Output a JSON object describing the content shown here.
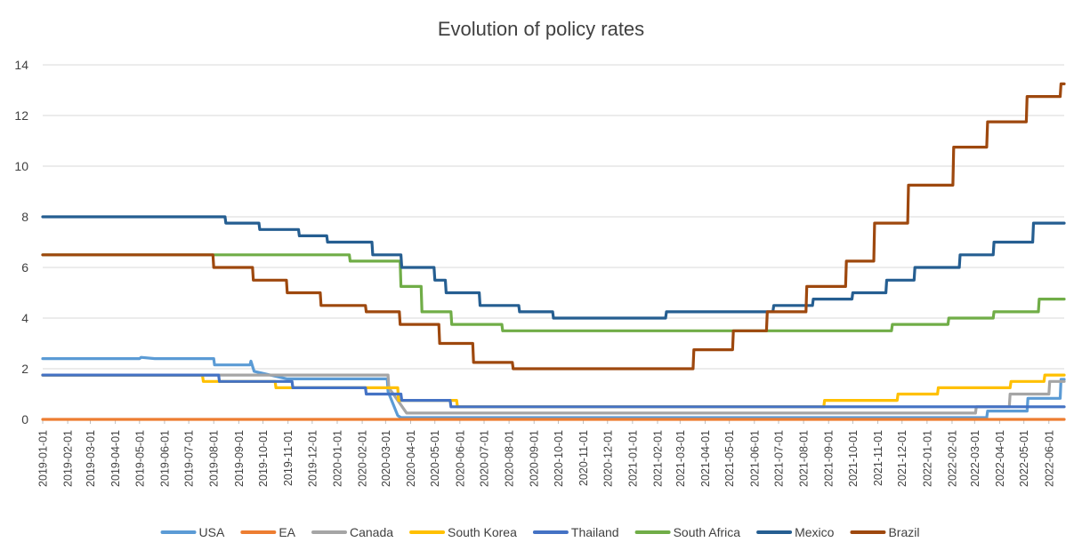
{
  "chart_data": {
    "type": "line",
    "title": "Evolution of policy rates",
    "xlabel": "",
    "ylabel": "",
    "ylim": [
      0,
      14
    ],
    "yticks": [
      0,
      2,
      4,
      6,
      8,
      10,
      12,
      14
    ],
    "grid": true,
    "legend_position": "bottom",
    "x_start": "2019-01-01",
    "x_end": "2022-06-20",
    "x_ticks": [
      "2019-01-01",
      "2019-02-01",
      "2019-03-01",
      "2019-04-01",
      "2019-05-01",
      "2019-06-01",
      "2019-07-01",
      "2019-08-01",
      "2019-09-01",
      "2019-10-01",
      "2019-11-01",
      "2019-12-01",
      "2020-01-01",
      "2020-02-01",
      "2020-03-01",
      "2020-04-01",
      "2020-05-01",
      "2020-06-01",
      "2020-07-01",
      "2020-08-01",
      "2020-09-01",
      "2020-10-01",
      "2020-11-01",
      "2020-12-01",
      "2021-01-01",
      "2021-02-01",
      "2021-03-01",
      "2021-04-01",
      "2021-05-01",
      "2021-06-01",
      "2021-07-01",
      "2021-08-01",
      "2021-09-01",
      "2021-10-01",
      "2021-11-01",
      "2021-12-01",
      "2022-01-01",
      "2022-02-01",
      "2022-03-01",
      "2022-04-01",
      "2022-05-01",
      "2022-06-01"
    ],
    "series": [
      {
        "name": "USA",
        "color": "#5b9bd5",
        "points": [
          [
            "2019-01-01",
            2.4
          ],
          [
            "2019-05-01",
            2.4
          ],
          [
            "2019-05-03",
            2.45
          ],
          [
            "2019-05-20",
            2.4
          ],
          [
            "2019-08-01",
            2.4
          ],
          [
            "2019-08-02",
            2.15
          ],
          [
            "2019-09-15",
            2.15
          ],
          [
            "2019-09-16",
            2.3
          ],
          [
            "2019-09-20",
            1.9
          ],
          [
            "2019-10-31",
            1.6
          ],
          [
            "2020-03-03",
            1.6
          ],
          [
            "2020-03-04",
            1.1
          ],
          [
            "2020-03-16",
            0.15
          ],
          [
            "2020-03-20",
            0.07
          ],
          [
            "2022-03-16",
            0.07
          ],
          [
            "2022-03-17",
            0.33
          ],
          [
            "2022-05-05",
            0.33
          ],
          [
            "2022-05-06",
            0.83
          ],
          [
            "2022-06-15",
            0.83
          ],
          [
            "2022-06-16",
            1.58
          ]
        ]
      },
      {
        "name": "EA",
        "color": "#ed7d31",
        "points": [
          [
            "2019-01-01",
            0.0
          ],
          [
            "2022-06-20",
            0.0
          ]
        ]
      },
      {
        "name": "Canada",
        "color": "#a5a5a5",
        "points": [
          [
            "2019-01-01",
            1.75
          ],
          [
            "2020-03-04",
            1.75
          ],
          [
            "2020-03-05",
            1.25
          ],
          [
            "2020-03-16",
            0.75
          ],
          [
            "2020-03-27",
            0.25
          ],
          [
            "2022-03-02",
            0.25
          ],
          [
            "2022-03-03",
            0.5
          ],
          [
            "2022-04-13",
            0.5
          ],
          [
            "2022-04-14",
            1.0
          ],
          [
            "2022-06-01",
            1.0
          ],
          [
            "2022-06-02",
            1.5
          ]
        ]
      },
      {
        "name": "South Korea",
        "color": "#ffc000",
        "points": [
          [
            "2019-01-01",
            1.75
          ],
          [
            "2019-07-18",
            1.75
          ],
          [
            "2019-07-19",
            1.5
          ],
          [
            "2019-10-16",
            1.5
          ],
          [
            "2019-10-17",
            1.25
          ],
          [
            "2020-03-16",
            1.25
          ],
          [
            "2020-03-17",
            0.75
          ],
          [
            "2020-05-28",
            0.75
          ],
          [
            "2020-05-29",
            0.5
          ],
          [
            "2021-08-26",
            0.5
          ],
          [
            "2021-08-27",
            0.75
          ],
          [
            "2021-11-25",
            0.75
          ],
          [
            "2021-11-26",
            1.0
          ],
          [
            "2022-01-14",
            1.0
          ],
          [
            "2022-01-15",
            1.25
          ],
          [
            "2022-04-14",
            1.25
          ],
          [
            "2022-04-15",
            1.5
          ],
          [
            "2022-05-26",
            1.5
          ],
          [
            "2022-05-27",
            1.75
          ]
        ]
      },
      {
        "name": "Thailand",
        "color": "#4472c4",
        "points": [
          [
            "2019-01-01",
            1.75
          ],
          [
            "2019-08-07",
            1.75
          ],
          [
            "2019-08-08",
            1.5
          ],
          [
            "2019-11-06",
            1.5
          ],
          [
            "2019-11-07",
            1.25
          ],
          [
            "2020-02-05",
            1.25
          ],
          [
            "2020-02-06",
            1.0
          ],
          [
            "2020-03-20",
            1.0
          ],
          [
            "2020-03-21",
            0.75
          ],
          [
            "2020-05-20",
            0.75
          ],
          [
            "2020-05-21",
            0.5
          ],
          [
            "2022-06-20",
            0.5
          ]
        ]
      },
      {
        "name": "South Africa",
        "color": "#70ad47",
        "points": [
          [
            "2019-01-01",
            6.5
          ],
          [
            "2020-01-16",
            6.5
          ],
          [
            "2020-01-17",
            6.25
          ],
          [
            "2020-03-19",
            6.25
          ],
          [
            "2020-03-20",
            5.25
          ],
          [
            "2020-04-14",
            5.25
          ],
          [
            "2020-04-15",
            4.25
          ],
          [
            "2020-05-21",
            4.25
          ],
          [
            "2020-05-22",
            3.75
          ],
          [
            "2020-07-23",
            3.75
          ],
          [
            "2020-07-24",
            3.5
          ],
          [
            "2021-11-18",
            3.5
          ],
          [
            "2021-11-19",
            3.75
          ],
          [
            "2022-01-27",
            3.75
          ],
          [
            "2022-01-28",
            4.0
          ],
          [
            "2022-03-24",
            4.0
          ],
          [
            "2022-03-25",
            4.25
          ],
          [
            "2022-05-19",
            4.25
          ],
          [
            "2022-05-20",
            4.75
          ]
        ]
      },
      {
        "name": "Mexico",
        "color": "#255e91",
        "points": [
          [
            "2019-01-01",
            8.0
          ],
          [
            "2019-08-15",
            8.0
          ],
          [
            "2019-08-16",
            7.75
          ],
          [
            "2019-09-26",
            7.75
          ],
          [
            "2019-09-27",
            7.5
          ],
          [
            "2019-11-14",
            7.5
          ],
          [
            "2019-11-15",
            7.25
          ],
          [
            "2019-12-19",
            7.25
          ],
          [
            "2019-12-20",
            7.0
          ],
          [
            "2020-02-13",
            7.0
          ],
          [
            "2020-02-14",
            6.5
          ],
          [
            "2020-03-20",
            6.5
          ],
          [
            "2020-03-21",
            6.0
          ],
          [
            "2020-04-30",
            6.0
          ],
          [
            "2020-05-01",
            5.5
          ],
          [
            "2020-05-14",
            5.5
          ],
          [
            "2020-05-15",
            5.0
          ],
          [
            "2020-06-25",
            5.0
          ],
          [
            "2020-06-26",
            4.5
          ],
          [
            "2020-08-13",
            4.5
          ],
          [
            "2020-08-14",
            4.25
          ],
          [
            "2020-09-24",
            4.25
          ],
          [
            "2020-09-25",
            4.0
          ],
          [
            "2021-02-11",
            4.0
          ],
          [
            "2021-02-12",
            4.25
          ],
          [
            "2021-06-24",
            4.25
          ],
          [
            "2021-06-25",
            4.5
          ],
          [
            "2021-08-12",
            4.5
          ],
          [
            "2021-08-13",
            4.75
          ],
          [
            "2021-09-30",
            4.75
          ],
          [
            "2021-10-01",
            5.0
          ],
          [
            "2021-11-11",
            5.0
          ],
          [
            "2021-11-12",
            5.5
          ],
          [
            "2021-12-16",
            5.5
          ],
          [
            "2021-12-17",
            6.0
          ],
          [
            "2022-02-10",
            6.0
          ],
          [
            "2022-02-11",
            6.5
          ],
          [
            "2022-03-24",
            6.5
          ],
          [
            "2022-03-25",
            7.0
          ],
          [
            "2022-05-12",
            7.0
          ],
          [
            "2022-05-13",
            7.75
          ]
        ]
      },
      {
        "name": "Brazil",
        "color": "#9e480e",
        "points": [
          [
            "2019-01-01",
            6.5
          ],
          [
            "2019-07-31",
            6.5
          ],
          [
            "2019-08-01",
            6.0
          ],
          [
            "2019-09-18",
            6.0
          ],
          [
            "2019-09-19",
            5.5
          ],
          [
            "2019-10-30",
            5.5
          ],
          [
            "2019-10-31",
            5.0
          ],
          [
            "2019-12-11",
            5.0
          ],
          [
            "2019-12-12",
            4.5
          ],
          [
            "2020-02-05",
            4.5
          ],
          [
            "2020-02-06",
            4.25
          ],
          [
            "2020-03-18",
            4.25
          ],
          [
            "2020-03-19",
            3.75
          ],
          [
            "2020-05-06",
            3.75
          ],
          [
            "2020-05-07",
            3.0
          ],
          [
            "2020-06-17",
            3.0
          ],
          [
            "2020-06-18",
            2.25
          ],
          [
            "2020-08-05",
            2.25
          ],
          [
            "2020-08-06",
            2.0
          ],
          [
            "2021-03-17",
            2.0
          ],
          [
            "2021-03-18",
            2.75
          ],
          [
            "2021-05-05",
            2.75
          ],
          [
            "2021-05-06",
            3.5
          ],
          [
            "2021-06-16",
            3.5
          ],
          [
            "2021-06-17",
            4.25
          ],
          [
            "2021-08-04",
            4.25
          ],
          [
            "2021-08-05",
            5.25
          ],
          [
            "2021-09-22",
            5.25
          ],
          [
            "2021-09-23",
            6.25
          ],
          [
            "2021-10-27",
            6.25
          ],
          [
            "2021-10-28",
            7.75
          ],
          [
            "2021-12-08",
            7.75
          ],
          [
            "2021-12-09",
            9.25
          ],
          [
            "2022-02-02",
            9.25
          ],
          [
            "2022-02-03",
            10.75
          ],
          [
            "2022-03-16",
            10.75
          ],
          [
            "2022-03-17",
            11.75
          ],
          [
            "2022-05-04",
            11.75
          ],
          [
            "2022-05-05",
            12.75
          ],
          [
            "2022-06-15",
            12.75
          ],
          [
            "2022-06-16",
            13.25
          ]
        ]
      }
    ]
  }
}
